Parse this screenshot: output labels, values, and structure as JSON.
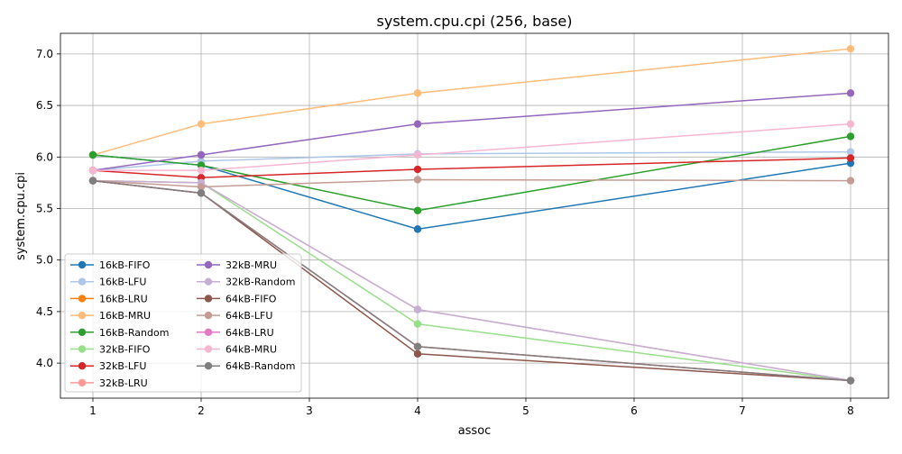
{
  "chart_data": {
    "type": "line",
    "title": "system.cpu.cpi (256, base)",
    "xlabel": "assoc",
    "ylabel": "system.cpu.cpi",
    "xlim": [
      0.7,
      8.35
    ],
    "ylim": [
      3.66,
      7.2
    ],
    "xticks": [
      1,
      2,
      3,
      4,
      5,
      6,
      7,
      8
    ],
    "yticks": [
      4.0,
      4.5,
      5.0,
      5.5,
      6.0,
      6.5,
      7.0
    ],
    "grid": true,
    "legend": "lower-left, two columns",
    "x": [
      1,
      2,
      4,
      8
    ],
    "series": [
      {
        "name": "16kB-FIFO",
        "color": "#1f77b4",
        "values": [
          6.02,
          5.92,
          5.3,
          5.94
        ]
      },
      {
        "name": "16kB-LFU",
        "color": "#aec7e8",
        "values": [
          5.87,
          5.96,
          6.03,
          6.05
        ]
      },
      {
        "name": "16kB-LRU",
        "color": "#ff7f0e",
        "values": [
          5.77,
          5.65,
          4.16,
          3.83
        ]
      },
      {
        "name": "16kB-MRU",
        "color": "#ffbb78",
        "values": [
          6.02,
          6.32,
          6.62,
          7.05
        ]
      },
      {
        "name": "16kB-Random",
        "color": "#2ca02c",
        "values": [
          6.02,
          5.92,
          5.48,
          6.2
        ]
      },
      {
        "name": "32kB-FIFO",
        "color": "#98df8a",
        "values": [
          5.77,
          5.75,
          4.38,
          3.83
        ]
      },
      {
        "name": "32kB-LFU",
        "color": "#d62728",
        "values": [
          5.87,
          5.8,
          5.88,
          5.99
        ]
      },
      {
        "name": "32kB-LRU",
        "color": "#ff9896",
        "values": [
          5.77,
          5.75,
          4.52,
          3.83
        ]
      },
      {
        "name": "32kB-MRU",
        "color": "#9467bd",
        "values": [
          5.87,
          6.02,
          6.32,
          6.62
        ]
      },
      {
        "name": "32kB-Random",
        "color": "#c5b0d5",
        "values": [
          5.77,
          5.75,
          4.52,
          3.83
        ]
      },
      {
        "name": "64kB-FIFO",
        "color": "#8c564b",
        "values": [
          5.77,
          5.65,
          4.09,
          3.83
        ]
      },
      {
        "name": "64kB-LFU",
        "color": "#c49c94",
        "values": [
          5.77,
          5.71,
          5.78,
          5.77
        ]
      },
      {
        "name": "64kB-LRU",
        "color": "#e377c2",
        "values": [
          5.77,
          5.65,
          4.16,
          3.83
        ]
      },
      {
        "name": "64kB-MRU",
        "color": "#f7b6d2",
        "values": [
          5.87,
          5.87,
          6.02,
          6.32
        ]
      },
      {
        "name": "64kB-Random",
        "color": "#7f7f7f",
        "values": [
          5.77,
          5.65,
          4.16,
          3.83
        ]
      }
    ]
  }
}
